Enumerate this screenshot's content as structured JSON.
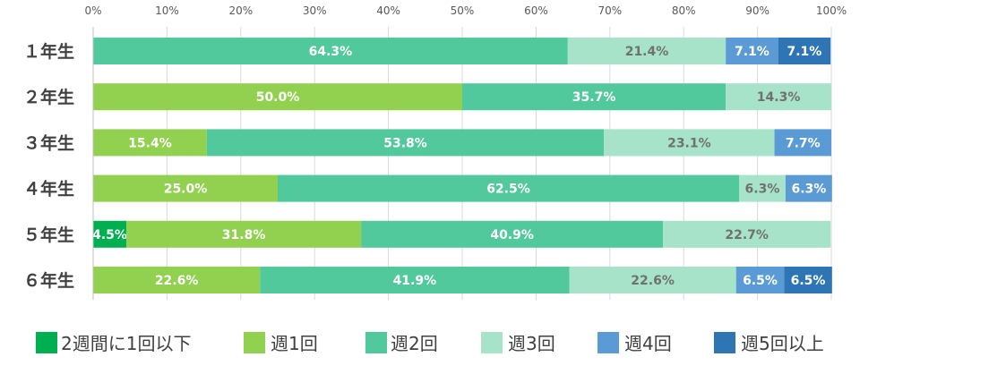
{
  "chart_data": {
    "type": "bar",
    "orientation": "horizontal",
    "stacked": "percent",
    "categories": [
      "１年生",
      "２年生",
      "３年生",
      "４年生",
      "５年生",
      "６年生"
    ],
    "x_ticks": [
      "0%",
      "10%",
      "20%",
      "30%",
      "40%",
      "50%",
      "60%",
      "70%",
      "80%",
      "90%",
      "100%"
    ],
    "xlim": [
      0,
      100
    ],
    "grid": true,
    "legend": "bottom",
    "series": [
      {
        "name": "2週間に1回以下",
        "color": "#00b050",
        "values": [
          0,
          0,
          0,
          0,
          4.5,
          0
        ],
        "labels": [
          "",
          "",
          "",
          "",
          "4.5%",
          ""
        ]
      },
      {
        "name": "週1回",
        "color": "#92d050",
        "values": [
          0,
          50.0,
          15.4,
          25.0,
          31.8,
          22.6
        ],
        "labels": [
          "",
          "50.0%",
          "15.4%",
          "25.0%",
          "31.8%",
          "22.6%"
        ]
      },
      {
        "name": "週2回",
        "color": "#52c89d",
        "values": [
          64.3,
          35.7,
          53.8,
          62.5,
          40.9,
          41.9
        ],
        "labels": [
          "64.3%",
          "35.7%",
          "53.8%",
          "62.5%",
          "40.9%",
          "41.9%"
        ]
      },
      {
        "name": "週3回",
        "color": "#a6e3c9",
        "values": [
          21.4,
          14.3,
          23.1,
          6.3,
          22.7,
          22.6
        ],
        "labels": [
          "21.4%",
          "14.3%",
          "23.1%",
          "6.3%",
          "22.7%",
          "22.6%"
        ]
      },
      {
        "name": "週4回",
        "color": "#5b9bd5",
        "values": [
          7.1,
          0,
          7.7,
          6.3,
          0,
          6.5
        ],
        "labels": [
          "7.1%",
          "",
          "7.7%",
          "6.3%",
          "",
          "6.5%"
        ]
      },
      {
        "name": "週5回以上",
        "color": "#2e75b6",
        "values": [
          7.1,
          0,
          0,
          0,
          0,
          6.5
        ],
        "labels": [
          "7.1%",
          "",
          "",
          "",
          "",
          "6.5%"
        ]
      }
    ]
  }
}
